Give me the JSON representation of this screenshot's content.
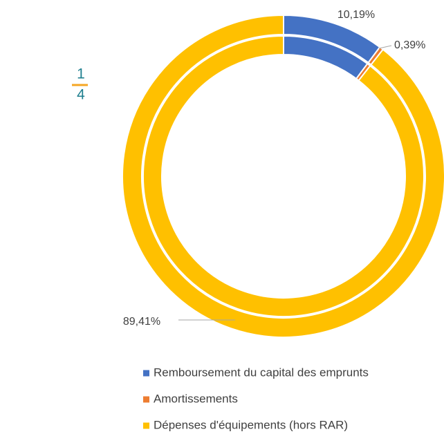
{
  "fraction": {
    "numerator": 1,
    "denominator": 4
  },
  "chart_data": {
    "type": "doughnut",
    "categories": [
      "Remboursement du capital des emprunts",
      "Amortissements",
      "Dépenses d'équipements (hors RAR)"
    ],
    "colors": [
      "#4472c4",
      "#ed7d31",
      "#ffc000"
    ],
    "rings": [
      {
        "values": [
          10.19,
          0.39,
          89.41
        ],
        "value_labels": [
          "10,19%",
          "0,39%",
          "89,41%"
        ]
      },
      {
        "values": [
          10.19,
          0.39,
          89.41
        ]
      }
    ],
    "legend": "bottom"
  }
}
